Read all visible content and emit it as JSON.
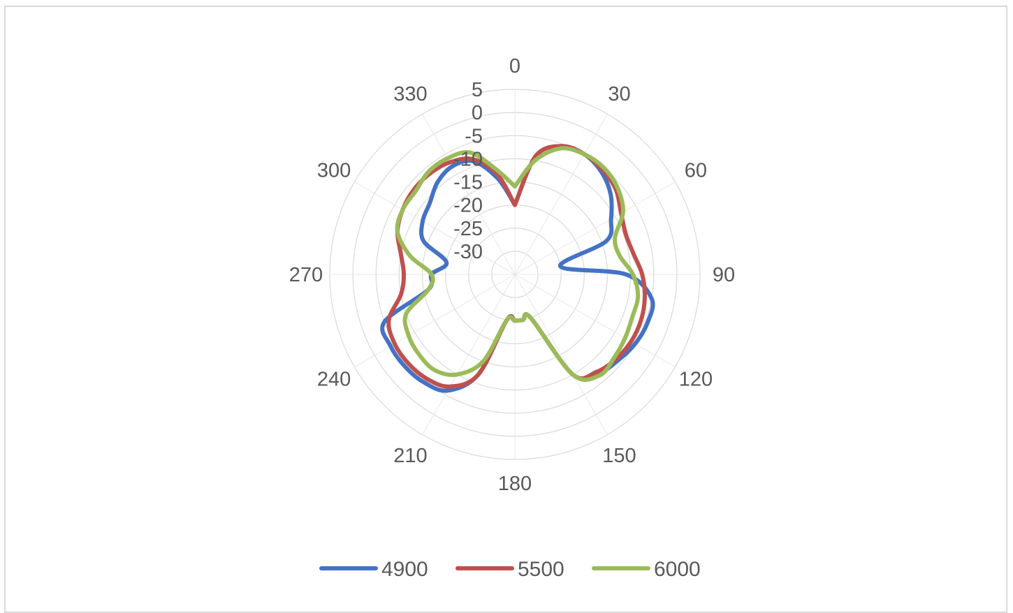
{
  "chart_data": {
    "type": "polar-line",
    "title": "",
    "angle_ticks": [
      "0",
      "30",
      "60",
      "90",
      "120",
      "150",
      "180",
      "210",
      "240",
      "270",
      "300",
      "330"
    ],
    "radial_ticks": [
      "5",
      "0",
      "-5",
      "-10",
      "-15",
      "-20",
      "-25",
      "-30"
    ],
    "rlim": [
      -35,
      5
    ],
    "grid": true,
    "legend_position": "bottom",
    "angles": [
      0,
      10,
      20,
      30,
      40,
      50,
      60,
      70,
      80,
      90,
      100,
      110,
      120,
      130,
      140,
      150,
      160,
      170,
      180,
      190,
      200,
      210,
      220,
      230,
      240,
      250,
      260,
      270,
      280,
      290,
      300,
      310,
      320,
      330,
      340,
      350,
      360
    ],
    "series": [
      {
        "name": "4900",
        "color": "#4472c4",
        "values": [
          -20,
          -9,
          -5.5,
          -5,
          -6,
          -8,
          -11,
          -14,
          -25,
          -11,
          -5,
          -4.5,
          -5,
          -6,
          -7,
          -10,
          -25,
          -25,
          -25,
          -25,
          -12,
          -6,
          -4.5,
          -4,
          -4,
          -5,
          -16,
          -17,
          -20,
          -14,
          -12,
          -11,
          -9,
          -8,
          -9,
          -14,
          -20
        ]
      },
      {
        "name": "5500",
        "color": "#c0504d",
        "values": [
          -20,
          -9,
          -5.5,
          -5,
          -5.5,
          -6.5,
          -8.5,
          -9.5,
          -9,
          -7.5,
          -6.5,
          -6,
          -6,
          -6.5,
          -7.5,
          -10,
          -25,
          -25,
          -25,
          -25,
          -12,
          -7,
          -5.5,
          -5,
          -5,
          -6,
          -10,
          -11,
          -10,
          -8,
          -7,
          -6.5,
          -6.5,
          -7,
          -8.5,
          -13,
          -20
        ]
      },
      {
        "name": "6000",
        "color": "#9bbb59",
        "values": [
          -16,
          -10,
          -6,
          -5,
          -5,
          -6,
          -8,
          -12,
          -12,
          -9.5,
          -8,
          -8,
          -7.5,
          -7,
          -6.5,
          -10,
          -25,
          -25,
          -25,
          -25,
          -15,
          -10,
          -8,
          -8,
          -8.5,
          -10,
          -16,
          -17,
          -12,
          -8,
          -7,
          -7,
          -6,
          -6,
          -7,
          -12,
          -16
        ]
      }
    ]
  }
}
